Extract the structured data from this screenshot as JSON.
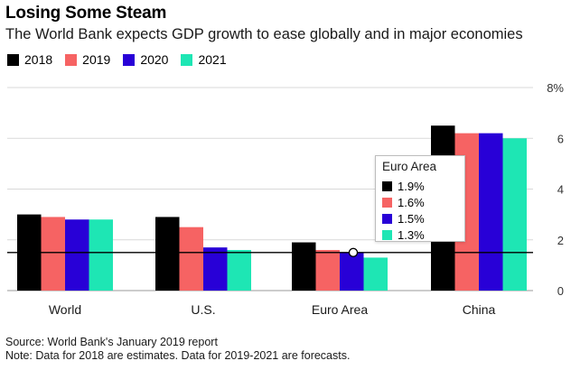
{
  "chart_data": {
    "type": "bar",
    "title": "Losing Some Steam",
    "subtitle": "The World Bank expects GDP growth to ease globally and in major economies",
    "categories": [
      "World",
      "U.S.",
      "Euro Area",
      "China"
    ],
    "series": [
      {
        "name": "2018",
        "color": "#000000",
        "values": [
          3.0,
          2.9,
          1.9,
          6.5
        ]
      },
      {
        "name": "2019",
        "color": "#f66363",
        "values": [
          2.9,
          2.5,
          1.6,
          6.2
        ]
      },
      {
        "name": "2020",
        "color": "#2800d7",
        "values": [
          2.8,
          1.7,
          1.5,
          6.2
        ]
      },
      {
        "name": "2021",
        "color": "#1ee6b4",
        "values": [
          2.8,
          1.6,
          1.3,
          6.0
        ]
      }
    ],
    "y_ticks": [
      "0",
      "2",
      "4",
      "6",
      "8%"
    ],
    "ylim": [
      0,
      8
    ],
    "reference_line": 1.5,
    "grid": true,
    "legend_position": "top-left",
    "tooltip": {
      "title": "Euro Area",
      "rows": [
        {
          "label": "1.9%",
          "color": "#000000"
        },
        {
          "label": "1.6%",
          "color": "#f66363"
        },
        {
          "label": "1.5%",
          "color": "#2800d7"
        },
        {
          "label": "1.3%",
          "color": "#1ee6b4"
        }
      ]
    }
  },
  "footer": {
    "source": "Source: World Bank's January 2019 report",
    "note": "Note: Data for 2018 are estimates. Data for 2019-2021 are forecasts."
  }
}
